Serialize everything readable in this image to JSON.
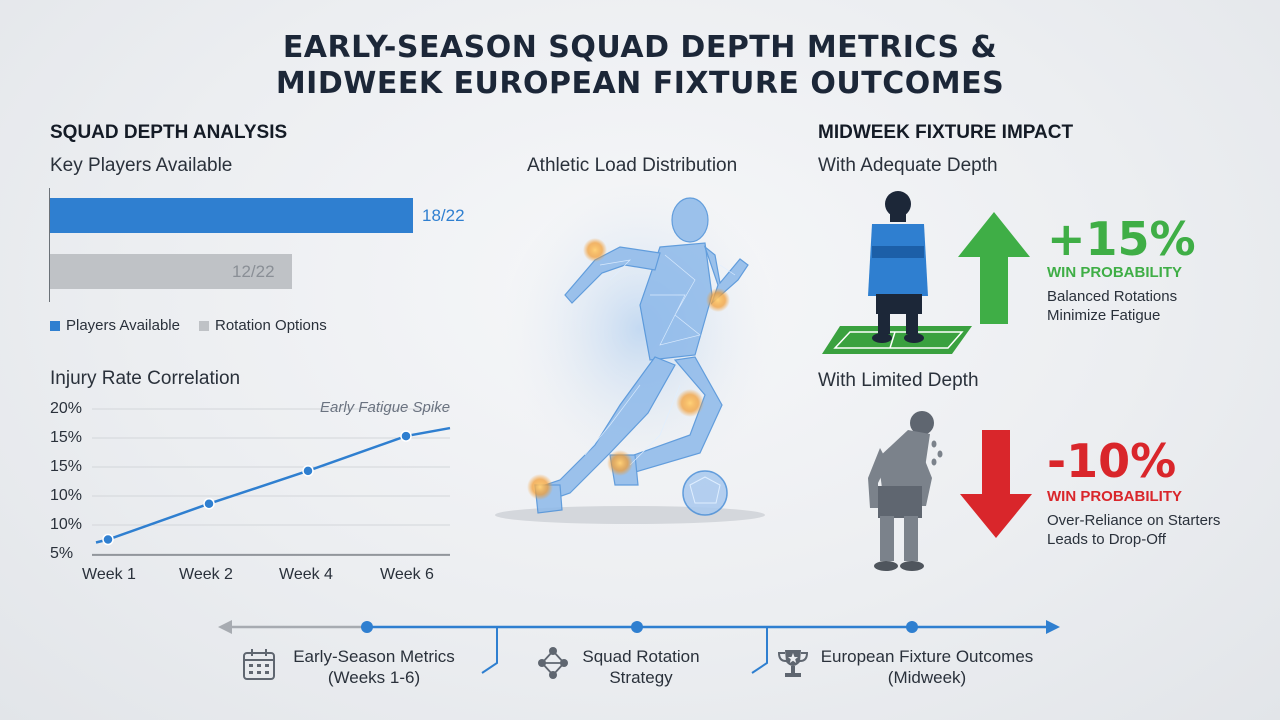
{
  "title": {
    "line1": "EARLY-SEASON SQUAD DEPTH METRICS &",
    "line2": "MIDWEEK EUROPEAN FIXTURE OUTCOMES"
  },
  "squad_depth": {
    "heading": "SQUAD DEPTH ANALYSIS",
    "subheading": "Key Players Available",
    "legend": [
      "Players Available",
      "Rotation Options"
    ]
  },
  "injury": {
    "heading": "Injury Rate Correlation",
    "annotation": "Early Fatigue Spike"
  },
  "athletic": {
    "heading": "Athletic Load Distribution"
  },
  "fixture_impact": {
    "heading": "MIDWEEK FIXTURE IMPACT",
    "adequate": {
      "label": "With Adequate Depth",
      "pct": "+15%",
      "metric": "WIN PROBABILITY",
      "desc1": "Balanced Rotations",
      "desc2": "Minimize Fatigue"
    },
    "limited": {
      "label": "With Limited Depth",
      "pct": "-10%",
      "metric": "WIN PROBABILITY",
      "desc1": "Over-Reliance on Starters",
      "desc2": "Leads to Drop-Off"
    }
  },
  "timeline": {
    "steps": [
      {
        "line1": "Early-Season Metrics",
        "line2": "(Weeks 1-6)",
        "icon": "calendar-icon"
      },
      {
        "line1": "Squad Rotation",
        "line2": "Strategy",
        "icon": "network-icon"
      },
      {
        "line1": "European Fixture Outcomes",
        "line2": "(Midweek)",
        "icon": "trophy-icon"
      }
    ]
  },
  "colors": {
    "blue": "#2f7fd0",
    "gray": "#bfc2c6",
    "green": "#3fae46",
    "red": "#d9262b",
    "navy": "#1c2738"
  },
  "chart_data": [
    {
      "type": "bar",
      "orientation": "horizontal",
      "categories": [
        "Players Available",
        "Rotation Options"
      ],
      "values": [
        18,
        12
      ],
      "max": 22,
      "labels": [
        "18/22",
        "12/22"
      ],
      "colors": [
        "#2f7fd0",
        "#bfc2c6"
      ]
    },
    {
      "type": "line",
      "x": [
        "Week 1",
        "Week 2",
        "Week 4",
        "Week 6"
      ],
      "y_tick_labels": [
        "20%",
        "15%",
        "15%",
        "10%",
        "10%",
        "5%"
      ],
      "series": [
        {
          "values": [
            6.5,
            10.2,
            13.6,
            17.2
          ]
        }
      ],
      "ylim": [
        5,
        20
      ],
      "annotation": "Early Fatigue Spike"
    }
  ]
}
